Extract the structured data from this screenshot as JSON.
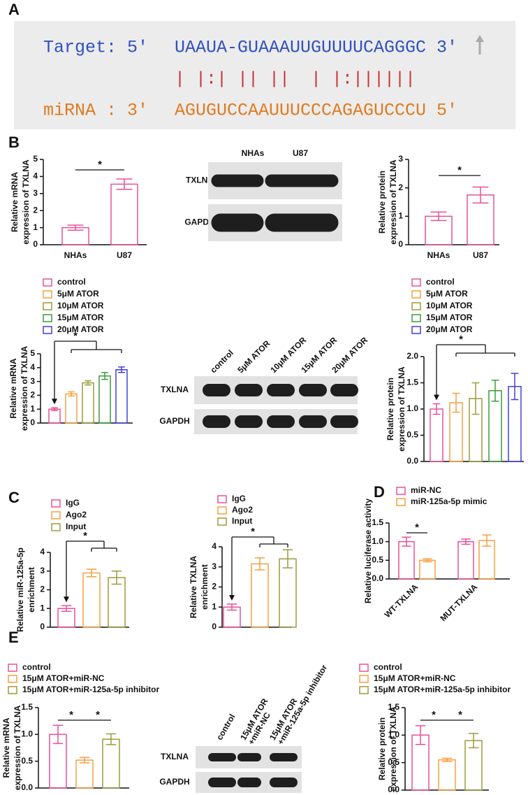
{
  "panels": [
    "A",
    "B",
    "C",
    "D",
    "E"
  ],
  "alignment": {
    "target_label": "Target: 5'",
    "target_seq": "UAAUA-GUAAAUUGUUUUCAGGGC",
    "target_end": "3'",
    "pairing": "| |:| || ||  | |:||||||",
    "mirna_label": "miRNA : 3'",
    "mirna_seq": "AGUGUCCAAUUUCCCAGAGUCCCU",
    "mirna_end": "5'"
  },
  "blots": [
    {
      "lanes": [
        [
          "NHAs"
        ],
        [
          "U87"
        ]
      ],
      "rows": [
        "TXLNA",
        "GAPDH"
      ]
    },
    {
      "lanes": [
        [
          "control"
        ],
        [
          "5μM ATOR"
        ],
        [
          "10μM ATOR"
        ],
        [
          "15μM ATOR"
        ],
        [
          "20μM ATOR"
        ]
      ],
      "rows": [
        "TXLNA",
        "GAPDH"
      ]
    },
    {
      "lanes": [
        [
          "control"
        ],
        [
          "15μM ATOR",
          "+miR-NC"
        ],
        [
          "15μM ATOR",
          "+miR-125a-5p inhibitor"
        ]
      ],
      "rows": [
        "TXLNA",
        "GAPDH"
      ]
    }
  ],
  "chart_data": [
    {
      "type": "bar",
      "ylabel": [
        "Relative mRNA",
        "expression of TXLNA"
      ],
      "categories": [
        "NHAs",
        "U87"
      ],
      "values": [
        1.0,
        3.55
      ],
      "errors": [
        0.15,
        0.3
      ],
      "colors": [
        "#e8509a",
        "#e8509a"
      ],
      "ylim": [
        0,
        5
      ],
      "yticks": [
        0,
        1,
        2,
        3,
        4,
        5
      ],
      "legend": false,
      "significance": [
        "*"
      ]
    },
    {
      "type": "bar",
      "ylabel": [
        "Relative protein",
        "expression of TXLNA"
      ],
      "categories": [
        "NHAs",
        "U87"
      ],
      "values": [
        1.0,
        1.75
      ],
      "errors": [
        0.15,
        0.28
      ],
      "colors": [
        "#e8509a",
        "#e8509a"
      ],
      "ylim": [
        0,
        3
      ],
      "yticks": [
        0,
        1,
        2,
        3
      ],
      "legend": false,
      "significance": [
        "*"
      ]
    },
    {
      "type": "bar",
      "ylabel": [
        "Relative mRNA",
        "expression of TXLNA"
      ],
      "categories": [
        "control",
        "5μM ATOR",
        "10μM ATOR",
        "15μM ATOR",
        "20μM ATOR"
      ],
      "values": [
        1.0,
        2.1,
        2.9,
        3.4,
        3.85
      ],
      "errors": [
        0.1,
        0.15,
        0.15,
        0.25,
        0.2
      ],
      "colors": [
        "#e8509a",
        "#f4a040",
        "#9c9c3c",
        "#3c9c3c",
        "#4040d8"
      ],
      "ylim": [
        0,
        5
      ],
      "yticks": [
        0,
        1,
        2,
        3,
        4,
        5
      ],
      "legend": true,
      "significance": [
        "*"
      ]
    },
    {
      "type": "bar",
      "ylabel": [
        "Relative protein",
        "expression of TXLNA"
      ],
      "categories": [
        "control",
        "5μM ATOR",
        "10μM ATOR",
        "15μM ATOR",
        "20μM ATOR"
      ],
      "values": [
        1.0,
        1.12,
        1.2,
        1.35,
        1.43
      ],
      "errors": [
        0.1,
        0.18,
        0.3,
        0.2,
        0.25
      ],
      "colors": [
        "#e8509a",
        "#f4a040",
        "#9c9c3c",
        "#3c9c3c",
        "#4040d8"
      ],
      "ylim": [
        0,
        2
      ],
      "yticks": [
        {
          "value": 0,
          "label": "0.0"
        },
        0.5,
        {
          "value": 1,
          "label": "1.0"
        },
        1.5,
        {
          "value": 2,
          "label": "2.0"
        }
      ],
      "legend": true,
      "significance": [
        "*"
      ]
    },
    {
      "type": "bar",
      "ylabel": [
        "Relative miR-125a-5p",
        "enrichment"
      ],
      "categories": [
        "IgG",
        "Ago2",
        "Input"
      ],
      "values": [
        1.0,
        2.9,
        2.65
      ],
      "errors": [
        0.15,
        0.2,
        0.35
      ],
      "colors": [
        "#e8509a",
        "#f4a040",
        "#9c9c3c"
      ],
      "ylim": [
        0,
        4
      ],
      "yticks": [
        0,
        1,
        2,
        3,
        4
      ],
      "legend": true,
      "significance": [
        "*"
      ]
    },
    {
      "type": "bar",
      "ylabel": [
        "Relative TXLNA",
        "enrichment"
      ],
      "categories": [
        "IgG",
        "Ago2",
        "Input"
      ],
      "values": [
        1.0,
        3.15,
        3.4
      ],
      "errors": [
        0.15,
        0.3,
        0.45
      ],
      "colors": [
        "#e8509a",
        "#f4a040",
        "#9c9c3c"
      ],
      "ylim": [
        0,
        4
      ],
      "yticks": [
        0,
        1,
        2,
        3,
        4
      ],
      "legend": true,
      "significance": [
        "*"
      ]
    },
    {
      "type": "grouped_bar",
      "ylabel": [
        "Relative luciferase activity"
      ],
      "categories": [
        "WT-TXLNA",
        "MUT-TXLNA"
      ],
      "series": [
        {
          "name": "miR-NC",
          "color": "#e8509a",
          "values": [
            1.0,
            1.0
          ],
          "errors": [
            0.12,
            0.07
          ]
        },
        {
          "name": "miR-125a-5p mimic",
          "color": "#f4a040",
          "values": [
            0.5,
            1.03
          ],
          "errors": [
            0.04,
            0.15
          ]
        }
      ],
      "ylim": [
        0,
        1.5
      ],
      "yticks": [
        {
          "value": 0,
          "label": "0.0"
        },
        0.5,
        {
          "value": 1,
          "label": "1.0"
        },
        1.5
      ],
      "legend": true,
      "significance": [
        "*"
      ]
    },
    {
      "type": "bar",
      "ylabel": [
        "Relative mRNA",
        "expression of TXLNA"
      ],
      "categories": [
        "control",
        "15μM ATOR+miR-NC",
        "15μM ATOR+miR-125a-5p inhibitor"
      ],
      "values": [
        1.0,
        0.52,
        0.91
      ],
      "errors": [
        0.17,
        0.05,
        0.1
      ],
      "colors": [
        "#e8509a",
        "#f4a040",
        "#9c9c3c"
      ],
      "ylim": [
        0,
        1.5
      ],
      "yticks": [
        {
          "value": 0,
          "label": "0.0"
        },
        0.5,
        {
          "value": 1,
          "label": "1.0"
        },
        1.5
      ],
      "legend": true,
      "significance": [
        "*",
        "*"
      ]
    },
    {
      "type": "bar",
      "ylabel": [
        "Relative protein",
        "expression of TXLNA"
      ],
      "categories": [
        "control",
        "15μM ATOR+miR-NC",
        "15μM ATOR+miR-125a-5p inhibitor"
      ],
      "values": [
        1.0,
        0.55,
        0.9
      ],
      "errors": [
        0.17,
        0.03,
        0.13
      ],
      "colors": [
        "#e8509a",
        "#f4a040",
        "#9c9c3c"
      ],
      "ylim": [
        0,
        1.5
      ],
      "yticks": [
        {
          "value": 0,
          "label": "0.0"
        },
        0.5,
        {
          "value": 1,
          "label": "1.0"
        },
        1.5
      ],
      "legend": true,
      "significance": [
        "*",
        "*"
      ]
    }
  ]
}
